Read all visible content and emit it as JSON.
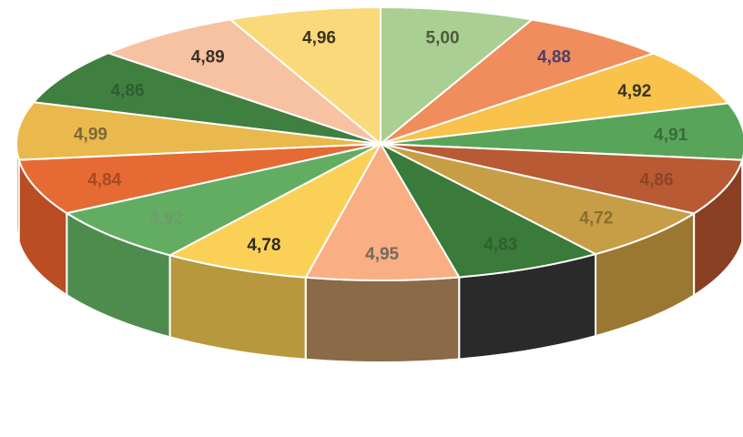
{
  "chart_data": {
    "type": "pie",
    "variant": "3d-exploded-pie",
    "title": "",
    "legend": "none",
    "slices": [
      {
        "label": "5,00",
        "value": 5.0,
        "color": "#a9cf92",
        "side_color": "#7fa86c",
        "label_color": "#4f5a3b"
      },
      {
        "label": "4,88",
        "value": 4.88,
        "color": "#f08d5d",
        "side_color": "#c46a40",
        "label_color": "#4a3f70"
      },
      {
        "label": "4,92",
        "value": 4.92,
        "color": "#f8c24b",
        "side_color": "#c79a35",
        "label_color": "#3a3322"
      },
      {
        "label": "4,91",
        "value": 4.91,
        "color": "#58a55a",
        "side_color": "#3f7d40",
        "label_color": "#3b6b3c"
      },
      {
        "label": "4,86",
        "value": 4.86,
        "color": "#b85a33",
        "side_color": "#8a3f22",
        "label_color": "#8d4426"
      },
      {
        "label": "4,72",
        "value": 4.72,
        "color": "#c79e45",
        "side_color": "#9a7831",
        "label_color": "#8a6d30"
      },
      {
        "label": "4,83",
        "value": 4.83,
        "color": "#3a7a3b",
        "side_color": "#2a2a2a",
        "label_color": "#2f5f30"
      },
      {
        "label": "4,95",
        "value": 4.95,
        "color": "#f9ae84",
        "side_color": "#8b6a48",
        "label_color": "#6f6a60"
      },
      {
        "label": "4,78",
        "value": 4.78,
        "color": "#fbd056",
        "side_color": "#b7983d",
        "label_color": "#2e2a1c"
      },
      {
        "label": "4,92",
        "value": 4.92,
        "color": "#63ad63",
        "side_color": "#4e8c4e",
        "label_color": "#6b9d6a"
      },
      {
        "label": "4,84",
        "value": 4.84,
        "color": "#e66a34",
        "side_color": "#ba4d24",
        "label_color": "#a64a22"
      },
      {
        "label": "4,99",
        "value": 4.99,
        "color": "#e9b94d",
        "side_color": "#c59a38",
        "label_color": "#7b6838"
      },
      {
        "label": "4,86",
        "value": 4.86,
        "color": "#3f7f40",
        "side_color": "#2f612f",
        "label_color": "#2e5e2f"
      },
      {
        "label": "4,89",
        "value": 4.89,
        "color": "#f7c2a2",
        "side_color": "#d39876",
        "label_color": "#3b3124"
      },
      {
        "label": "4,96",
        "value": 4.96,
        "color": "#f9d97a",
        "side_color": "#c8ac5a",
        "label_color": "#3b3222"
      }
    ]
  }
}
